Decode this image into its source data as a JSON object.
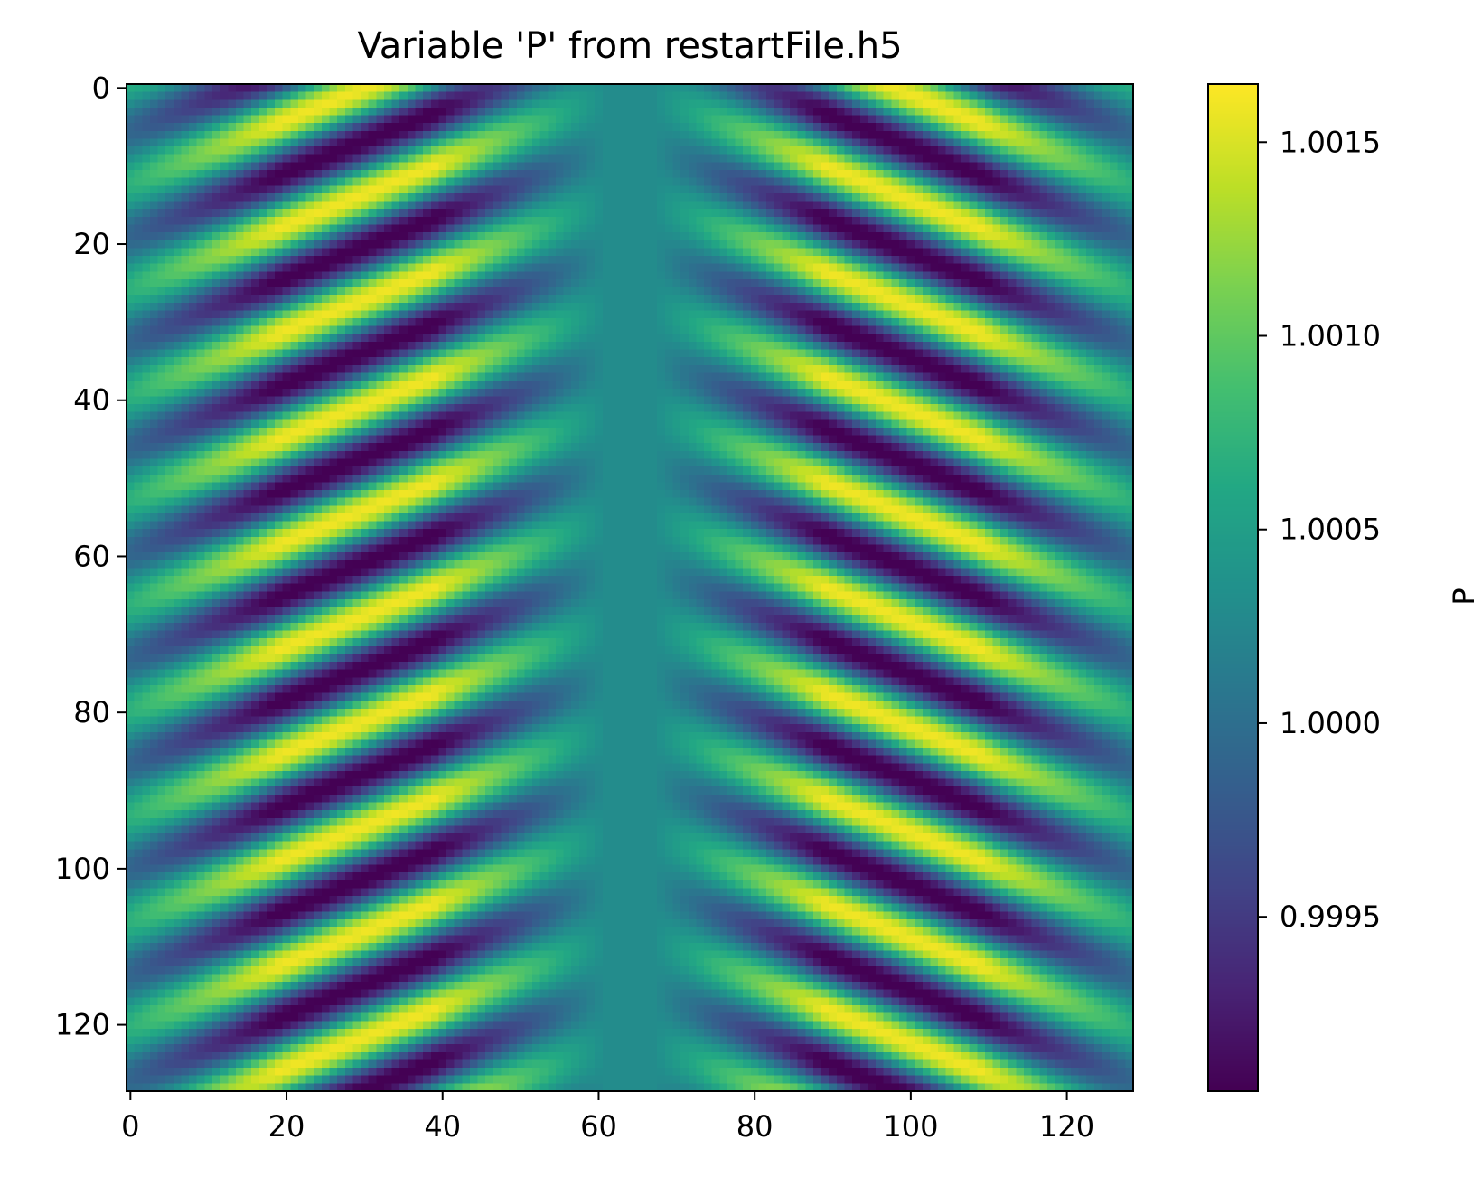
{
  "chart_data": {
    "type": "heatmap",
    "title": "Variable 'P' from restartFile.h5",
    "xlabel": "",
    "ylabel": "",
    "grid": false,
    "colormap": "viridis",
    "rows": 129,
    "cols": 129,
    "xlim": [
      -0.5,
      128.5
    ],
    "ylim": [
      128.5,
      -0.5
    ],
    "x_ticks": [
      0,
      20,
      40,
      60,
      80,
      100,
      120
    ],
    "y_ticks": [
      0,
      20,
      40,
      60,
      80,
      100,
      120
    ],
    "colorbar": {
      "label": "P",
      "vmin": 0.99905,
      "vmax": 1.00165,
      "ticks": [
        0.9995,
        1.0,
        1.0005,
        1.001,
        1.0015
      ],
      "tick_labels": [
        "0.9995",
        "1.0000",
        "1.0005",
        "1.0010",
        "1.0015"
      ]
    },
    "field_model": {
      "description": "Chevron wave pattern symmetric about center column 64; value = 1.0003 + envelope(|x-64|) * cos(2π(row - 0.4·|x-64|)/13.5)",
      "center_column": 64,
      "mean_value": 1.0003,
      "period_rows": 13.5,
      "slope_rows_per_col": 0.4,
      "max_amplitude": 0.0013
    }
  }
}
